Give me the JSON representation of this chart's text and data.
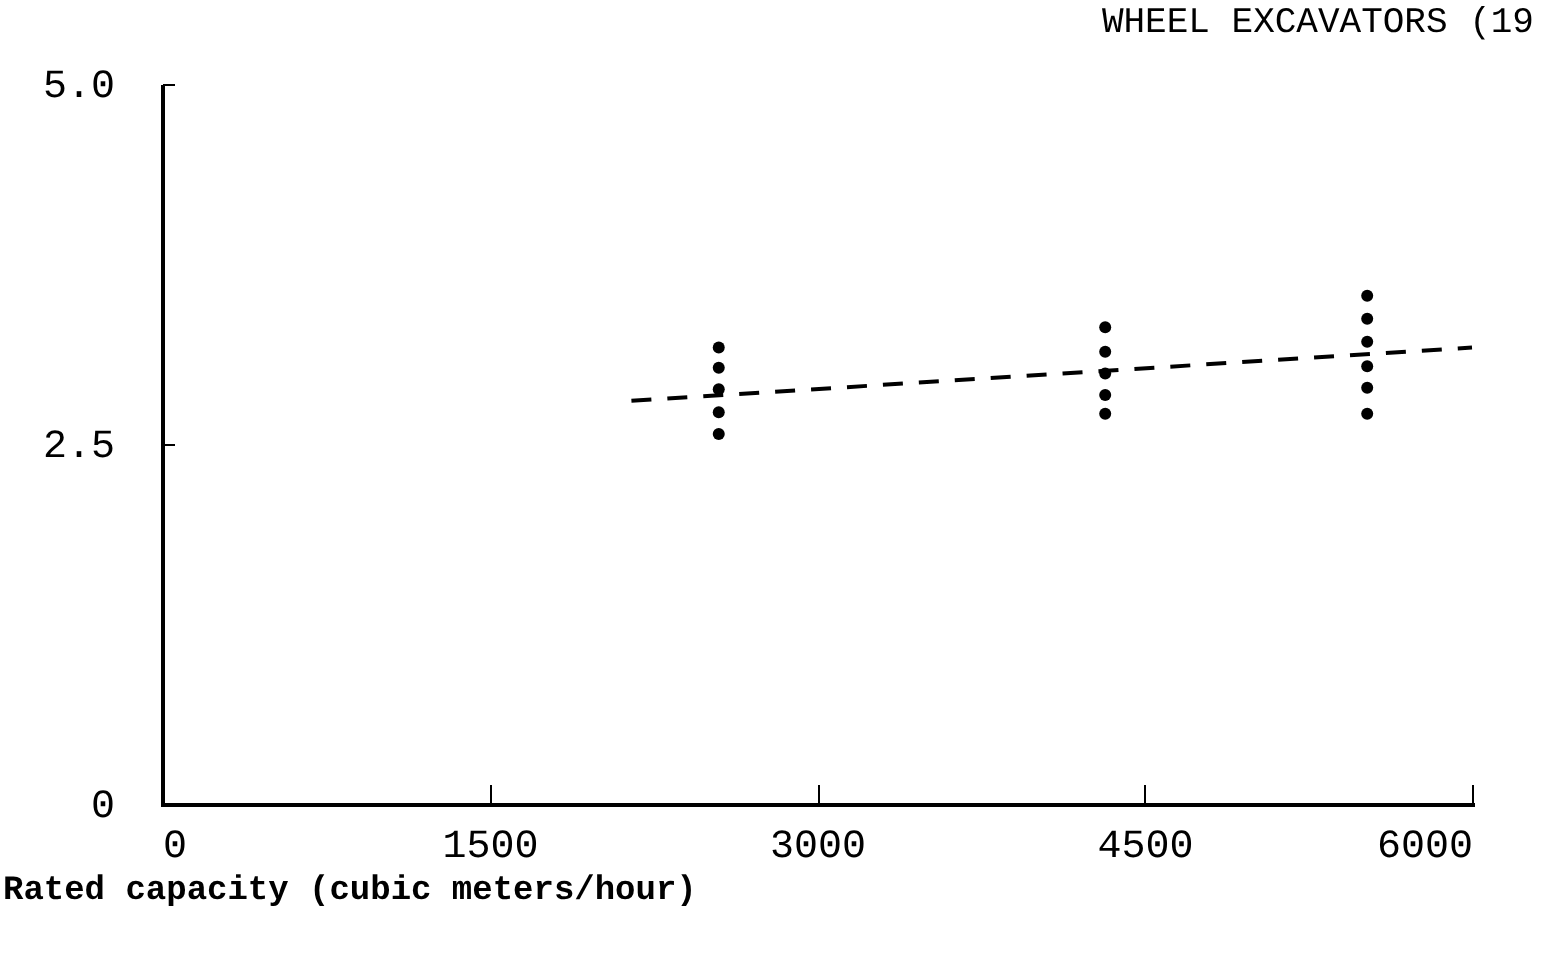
{
  "chart_data": {
    "type": "scatter",
    "title": "WHEEL EXCAVATORS (19",
    "xlabel": "Rated capacity (cubic meters/hour)",
    "series": [
      {
        "color": "#000000",
        "x": [
          2550,
          2550,
          2550,
          2550,
          2550,
          4320,
          4320,
          4320,
          4320,
          4320,
          5520,
          5520,
          5520,
          5520,
          5520,
          5520
        ],
        "values": [
          3.17,
          3.03,
          2.88,
          2.72,
          2.57,
          3.31,
          3.14,
          2.99,
          2.84,
          2.71,
          3.53,
          3.37,
          3.21,
          3.04,
          2.89,
          2.71
        ]
      },
      {
        "type": "line",
        "color": "#000000",
        "line_style": "dashed",
        "marker": "none",
        "x": [
          2150,
          6000
        ],
        "values": [
          2.8,
          3.17
        ]
      }
    ],
    "marker": "circle",
    "xlim": [
      0,
      6000
    ],
    "ylim": [
      0,
      5
    ],
    "xticks": [
      0,
      1500,
      3000,
      4500,
      6000
    ],
    "yticks": [
      0,
      {
        "value": 2.5,
        "label": "2.5"
      },
      {
        "value": 5,
        "label": "5.0"
      }
    ],
    "grid": false
  }
}
